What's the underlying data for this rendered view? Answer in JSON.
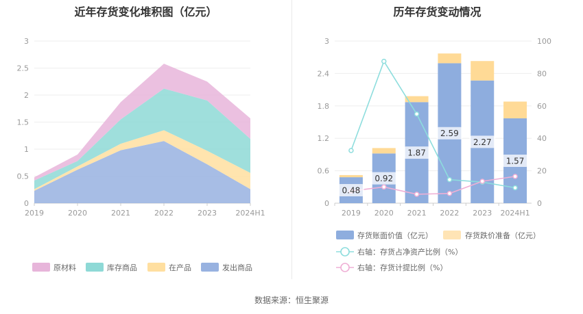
{
  "left_title": "近年存货变化堆积图（亿元）",
  "right_title": "历年存货变动情况",
  "source": "数据来源：恒生聚源",
  "colors": {
    "raw_materials": "#E7B5DA",
    "inventory_goods": "#8ED9D6",
    "work_in_progress": "#FFDFA0",
    "goods_shipped": "#98B2E0",
    "book_value_bar": "#8EADDE",
    "impairment_bar": "#FFDA96",
    "ratio_line": "#8DDDDD",
    "provision_line": "#EFAFD5"
  },
  "chart_data": [
    {
      "type": "area",
      "title": "近年存货变化堆积图（亿元）",
      "stacked": true,
      "categories": [
        "2019",
        "2020",
        "2021",
        "2022",
        "2023",
        "2024H1"
      ],
      "ylim": [
        0,
        3
      ],
      "yticks": [
        "0",
        "0.5",
        "1",
        "1.5",
        "2",
        "2.5",
        "3"
      ],
      "legend_position": "bottom",
      "series": [
        {
          "name": "发出商品",
          "key": "goods_shipped",
          "values": [
            0.23,
            0.62,
            0.98,
            1.15,
            0.72,
            0.26
          ]
        },
        {
          "name": "在产品",
          "key": "work_in_progress",
          "values": [
            0.03,
            0.06,
            0.12,
            0.2,
            0.25,
            0.3
          ]
        },
        {
          "name": "库存商品",
          "key": "inventory_goods",
          "values": [
            0.16,
            0.1,
            0.45,
            0.77,
            0.93,
            0.63
          ]
        },
        {
          "name": "原材料",
          "key": "raw_materials",
          "values": [
            0.06,
            0.12,
            0.32,
            0.46,
            0.35,
            0.38
          ]
        }
      ],
      "legend_order": [
        "原材料",
        "库存商品",
        "在产品",
        "发出商品"
      ]
    },
    {
      "type": "bar",
      "title": "历年存货变动情况",
      "stacked": true,
      "categories": [
        "2019",
        "2020",
        "2021",
        "2022",
        "2023",
        "2024H1"
      ],
      "ylim": [
        0,
        3
      ],
      "yticks": [
        "0",
        "0.6",
        "1.2",
        "1.8",
        "2.4",
        "3"
      ],
      "y2lim": [
        0,
        100
      ],
      "y2ticks": [
        "0",
        "20",
        "40",
        "60",
        "80",
        "100"
      ],
      "legend_position": "bottom",
      "series": [
        {
          "name": "存货账面价值（亿元）",
          "key": "book_value_bar",
          "values": [
            0.48,
            0.92,
            1.87,
            2.59,
            2.27,
            1.57
          ],
          "labels": [
            "0.48",
            "0.92",
            "1.87",
            "2.59",
            "2.27",
            "1.57"
          ]
        },
        {
          "name": "存货跌价准备（亿元）",
          "key": "impairment_bar",
          "values": [
            0.04,
            0.1,
            0.11,
            0.18,
            0.36,
            0.31
          ]
        }
      ],
      "lines": [
        {
          "name": "右轴：存货占净资产比例（%）",
          "key": "ratio_line",
          "axis": "right",
          "values": [
            32.5,
            87.5,
            55.0,
            14.5,
            13.0,
            9.5
          ]
        },
        {
          "name": "右轴：存货计提比例（%）",
          "key": "provision_line",
          "axis": "right",
          "values": [
            7.5,
            10.0,
            5.5,
            6.0,
            13.5,
            16.5
          ]
        }
      ]
    }
  ]
}
